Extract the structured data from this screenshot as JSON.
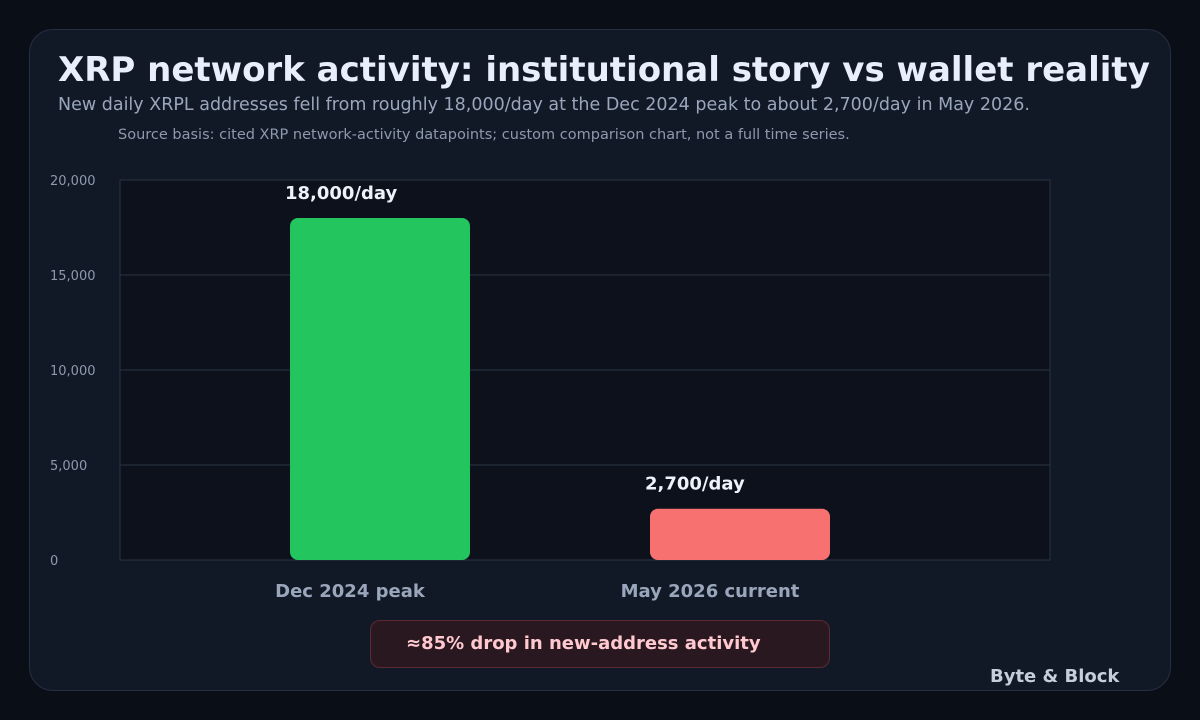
{
  "header": {
    "title": "XRP network activity: institutional story vs wallet reality",
    "subtitle": "New daily XRPL addresses fell from roughly 18,000/day at the Dec 2024 peak to about 2,700/day in May 2026.",
    "source": "Source basis: cited XRP network-activity datapoints; custom comparison chart, not a full time series."
  },
  "chart_data": {
    "type": "bar",
    "title": "XRP network activity: institutional story vs wallet reality",
    "subtitle": "New daily XRPL addresses fell from roughly 18,000/day at the Dec 2024 peak to about 2,700/day in May 2026.",
    "categories": [
      "Dec 2024 peak",
      "May 2026 current"
    ],
    "values": [
      18000,
      2700
    ],
    "data_labels": [
      "18,000/day",
      "2,700/day"
    ],
    "bar_colors": [
      "#22c55e",
      "#f87171"
    ],
    "xlabel": "",
    "ylabel": "",
    "ylim": [
      0,
      20000
    ],
    "yticks": [
      0,
      5000,
      10000,
      15000,
      20000
    ],
    "ytick_labels": [
      "0",
      "5,000",
      "10,000",
      "15,000",
      "20,000"
    ],
    "grid": true,
    "legend": "none"
  },
  "callout": {
    "text": "≈85% drop in new-address activity"
  },
  "brand": {
    "name": "Byte & Block"
  }
}
